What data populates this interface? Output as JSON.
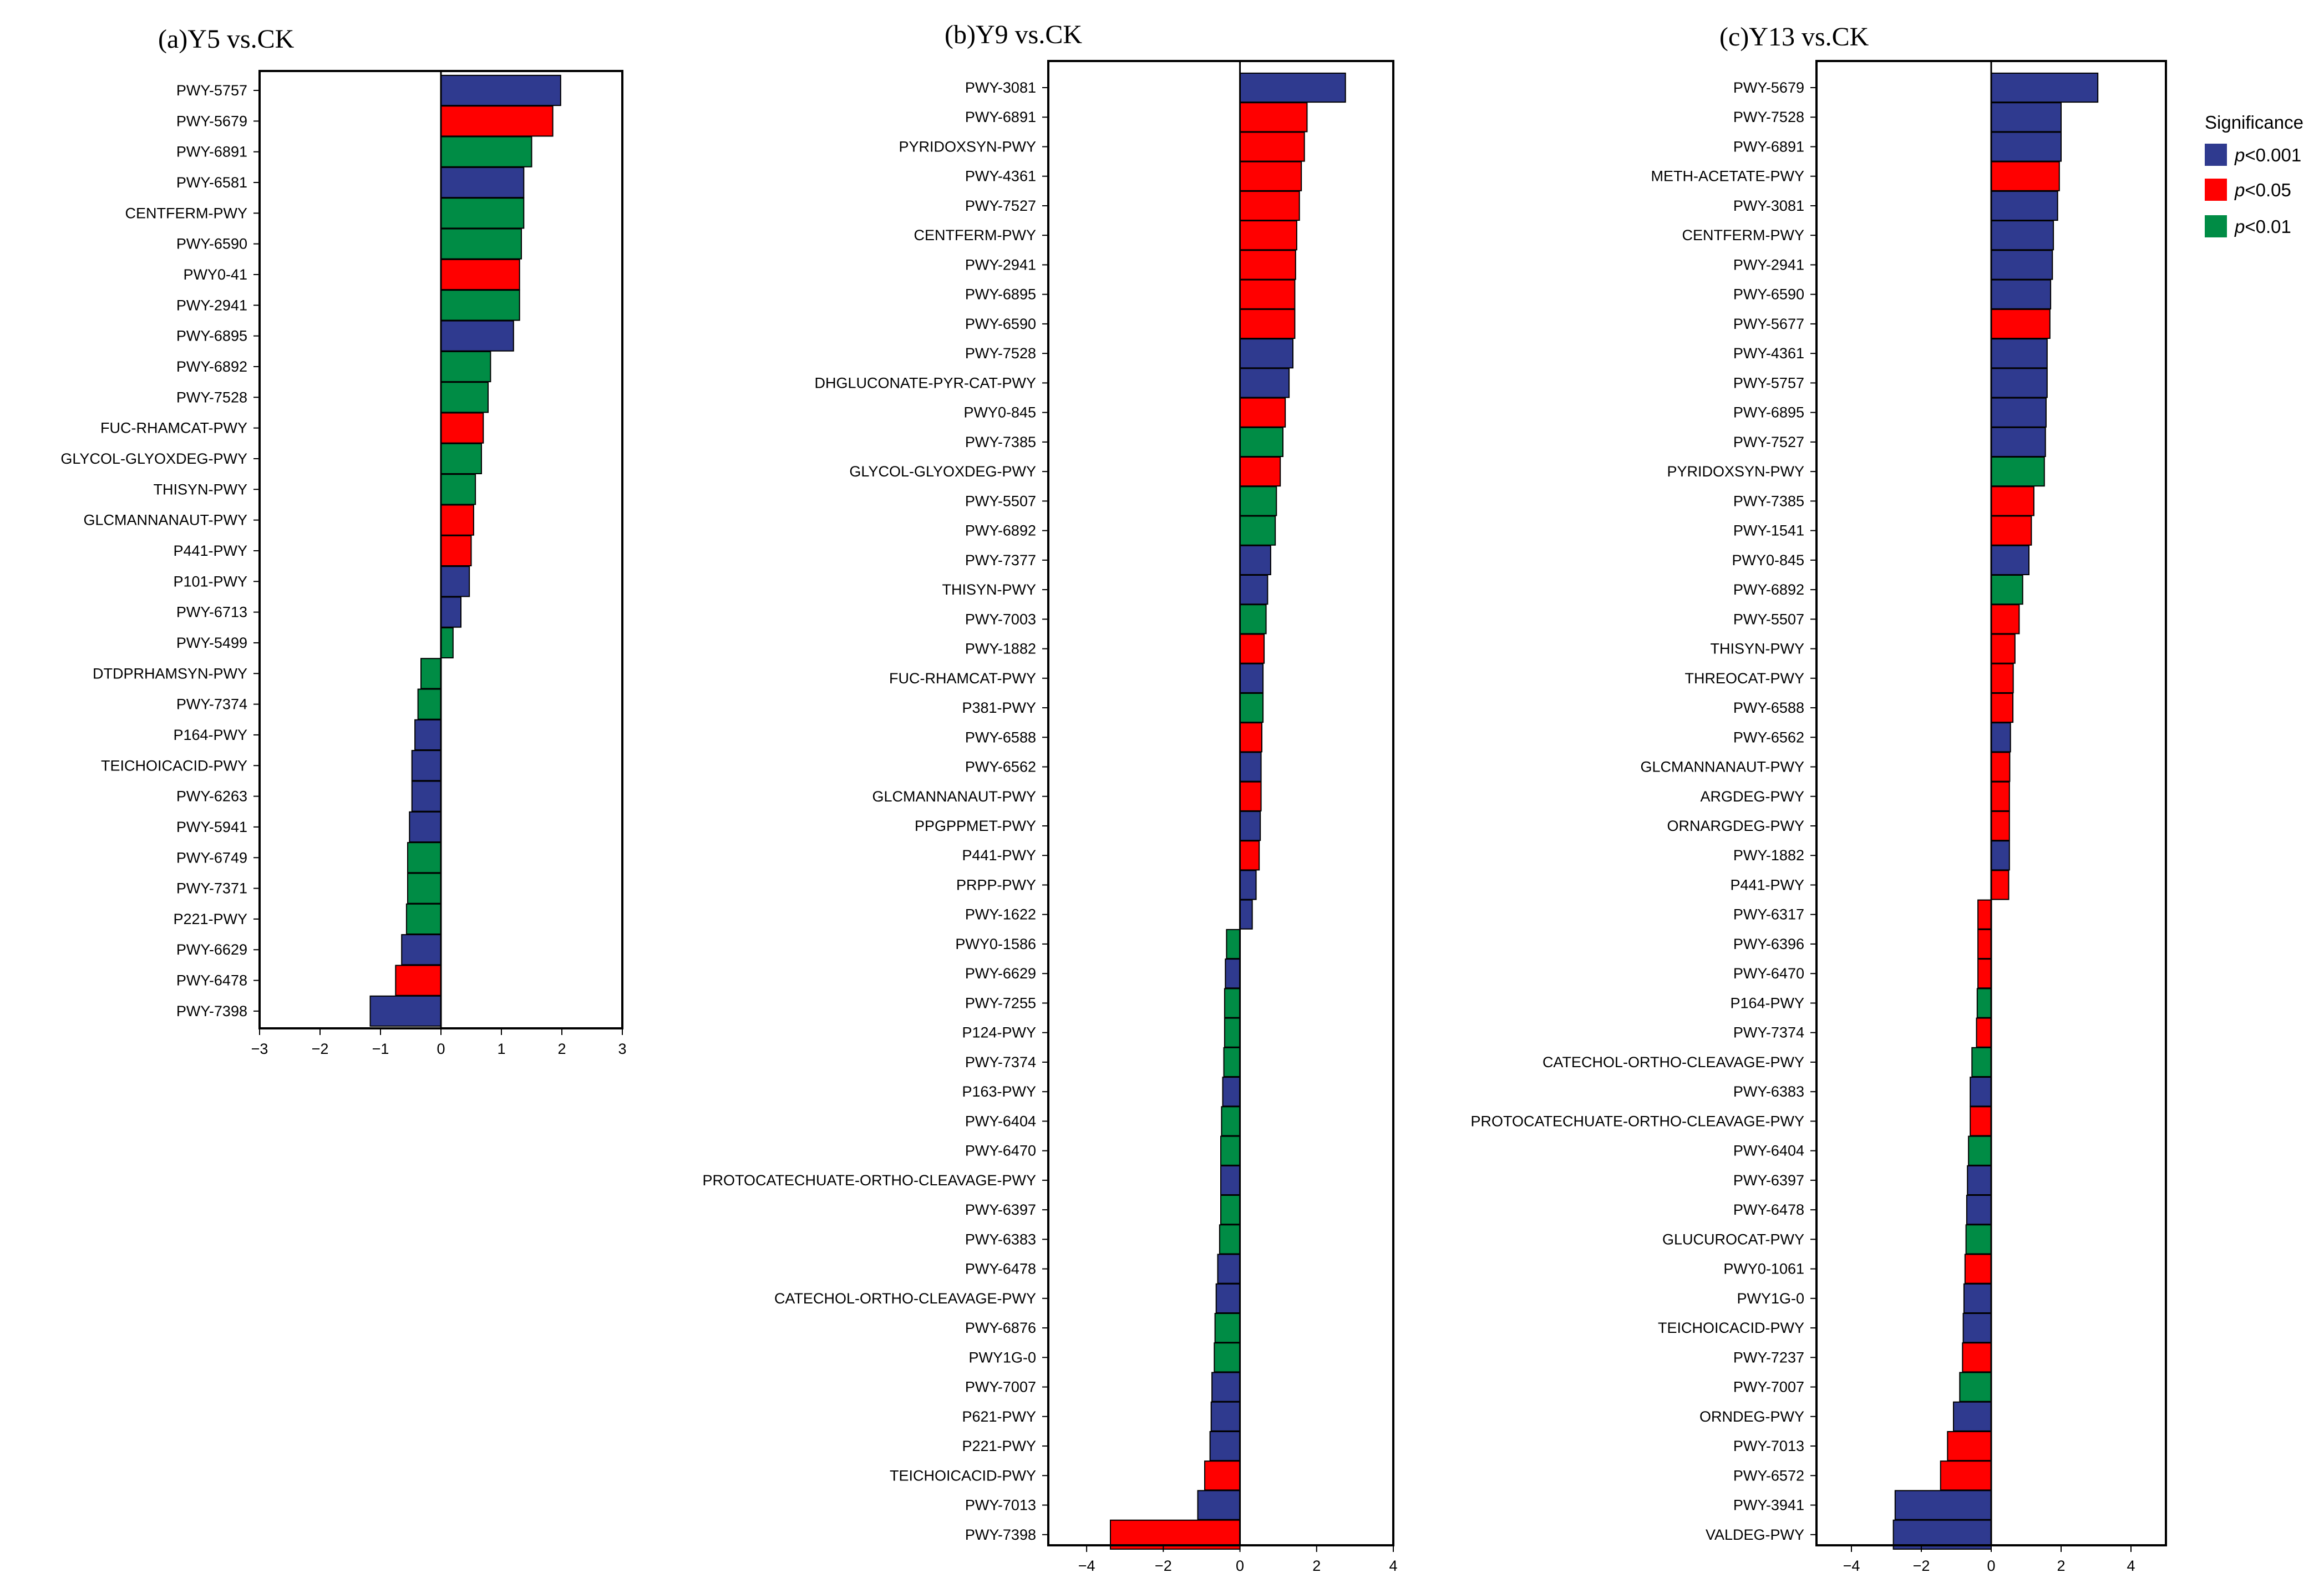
{
  "legend": {
    "title": "Significance",
    "entries": [
      {
        "key": "p<0.001",
        "p": "p",
        "rest": "<0.001",
        "color": "#2f3a8f"
      },
      {
        "key": "p<0.05",
        "p": "p",
        "rest": "<0.05",
        "color": "#ff0000"
      },
      {
        "key": "p<0.01",
        "p": "p",
        "rest": "<0.01",
        "color": "#008c45"
      }
    ]
  },
  "chart_data": [
    {
      "type": "bar",
      "orientation": "horizontal",
      "title": "(a)Y5 vs.CK",
      "xlim": [
        -3,
        3
      ],
      "xticks": [
        -3,
        -2,
        -1,
        0,
        1,
        2,
        3
      ],
      "xticklabels": [
        "−3",
        "−2",
        "−1",
        "0",
        "1",
        "2",
        "3"
      ],
      "categories": [
        "PWY-5757",
        "PWY-5679",
        "PWY-6891",
        "PWY-6581",
        "CENTFERM-PWY",
        "PWY-6590",
        "PWY0-41",
        "PWY-2941",
        "PWY-6895",
        "PWY-6892",
        "PWY-7528",
        "FUC-RHAMCAT-PWY",
        "GLYCOL-GLYOXDEG-PWY",
        "THISYN-PWY",
        "GLCMANNANAUT-PWY",
        "P441-PWY",
        "P101-PWY",
        "PWY-6713",
        "PWY-5499",
        "DTDPRHAMSYN-PWY",
        "PWY-7374",
        "P164-PWY",
        "TEICHOICACID-PWY",
        "PWY-6263",
        "PWY-5941",
        "PWY-6749",
        "PWY-7371",
        "P221-PWY",
        "PWY-6629",
        "PWY-6478",
        "PWY-7398"
      ],
      "values": [
        1.98,
        1.85,
        1.5,
        1.37,
        1.37,
        1.33,
        1.3,
        1.3,
        1.2,
        0.82,
        0.78,
        0.7,
        0.67,
        0.57,
        0.54,
        0.5,
        0.47,
        0.33,
        0.2,
        -0.33,
        -0.38,
        -0.43,
        -0.48,
        -0.48,
        -0.52,
        -0.55,
        -0.55,
        -0.57,
        -0.65,
        -0.75,
        -1.17
      ],
      "significance": [
        "p<0.001",
        "p<0.05",
        "p<0.01",
        "p<0.001",
        "p<0.01",
        "p<0.01",
        "p<0.05",
        "p<0.01",
        "p<0.001",
        "p<0.01",
        "p<0.01",
        "p<0.05",
        "p<0.01",
        "p<0.01",
        "p<0.05",
        "p<0.05",
        "p<0.001",
        "p<0.001",
        "p<0.01",
        "p<0.01",
        "p<0.01",
        "p<0.001",
        "p<0.001",
        "p<0.001",
        "p<0.001",
        "p<0.01",
        "p<0.01",
        "p<0.01",
        "p<0.001",
        "p<0.05",
        "p<0.001"
      ]
    },
    {
      "type": "bar",
      "orientation": "horizontal",
      "title": "(b)Y9 vs.CK",
      "xlim": [
        -5,
        4
      ],
      "xticks": [
        -4,
        -2,
        0,
        2,
        4
      ],
      "xticklabels": [
        "−4",
        "−2",
        "0",
        "2",
        "4"
      ],
      "categories": [
        "PWY-3081",
        "PWY-6891",
        "PYRIDOXSYN-PWY",
        "PWY-4361",
        "PWY-7527",
        "CENTFERM-PWY",
        "PWY-2941",
        "PWY-6895",
        "PWY-6590",
        "PWY-7528",
        "DHGLUCONATE-PYR-CAT-PWY",
        "PWY0-845",
        "PWY-7385",
        "GLYCOL-GLYOXDEG-PWY",
        "PWY-5507",
        "PWY-6892",
        "PWY-7377",
        "THISYN-PWY",
        "PWY-7003",
        "PWY-1882",
        "FUC-RHAMCAT-PWY",
        "P381-PWY",
        "PWY-6588",
        "PWY-6562",
        "GLCMANNANAUT-PWY",
        "PPGPPMET-PWY",
        "P441-PWY",
        "PRPP-PWY",
        "PWY-1622",
        "PWY0-1586",
        "PWY-6629",
        "PWY-7255",
        "P124-PWY",
        "PWY-7374",
        "P163-PWY",
        "PWY-6404",
        "PWY-6470",
        "PROTOCATECHUATE-ORTHO-CLEAVAGE-PWY",
        "PWY-6397",
        "PWY-6383",
        "PWY-6478",
        "CATECHOL-ORTHO-CLEAVAGE-PWY",
        "PWY-6876",
        "PWY1G-0",
        "PWY-7007",
        "P621-PWY",
        "P221-PWY",
        "TEICHOICACID-PWY",
        "PWY-7013",
        "PWY-7398"
      ],
      "values": [
        2.75,
        1.75,
        1.68,
        1.6,
        1.55,
        1.48,
        1.45,
        1.43,
        1.43,
        1.38,
        1.28,
        1.18,
        1.12,
        1.05,
        0.95,
        0.92,
        0.8,
        0.72,
        0.68,
        0.63,
        0.6,
        0.6,
        0.57,
        0.55,
        0.55,
        0.53,
        0.5,
        0.42,
        0.32,
        -0.35,
        -0.38,
        -0.4,
        -0.4,
        -0.42,
        -0.45,
        -0.48,
        -0.5,
        -0.5,
        -0.5,
        -0.53,
        -0.58,
        -0.62,
        -0.65,
        -0.67,
        -0.73,
        -0.75,
        -0.78,
        -0.92,
        -1.1,
        -3.38
      ],
      "significance": [
        "p<0.001",
        "p<0.05",
        "p<0.05",
        "p<0.05",
        "p<0.05",
        "p<0.05",
        "p<0.05",
        "p<0.05",
        "p<0.05",
        "p<0.001",
        "p<0.001",
        "p<0.05",
        "p<0.01",
        "p<0.05",
        "p<0.01",
        "p<0.01",
        "p<0.001",
        "p<0.001",
        "p<0.01",
        "p<0.05",
        "p<0.001",
        "p<0.01",
        "p<0.05",
        "p<0.001",
        "p<0.05",
        "p<0.001",
        "p<0.05",
        "p<0.001",
        "p<0.001",
        "p<0.01",
        "p<0.001",
        "p<0.01",
        "p<0.01",
        "p<0.01",
        "p<0.001",
        "p<0.01",
        "p<0.01",
        "p<0.001",
        "p<0.01",
        "p<0.01",
        "p<0.001",
        "p<0.001",
        "p<0.01",
        "p<0.01",
        "p<0.001",
        "p<0.001",
        "p<0.001",
        "p<0.05",
        "p<0.001",
        "p<0.05"
      ]
    },
    {
      "type": "bar",
      "orientation": "horizontal",
      "title": "(c)Y13 vs.CK",
      "xlim": [
        -5,
        5
      ],
      "xticks": [
        -4,
        -2,
        0,
        2,
        4
      ],
      "xticklabels": [
        "−4",
        "−2",
        "0",
        "2",
        "4"
      ],
      "categories": [
        "PWY-5679",
        "PWY-7528",
        "PWY-6891",
        "METH-ACETATE-PWY",
        "PWY-3081",
        "CENTFERM-PWY",
        "PWY-2941",
        "PWY-6590",
        "PWY-5677",
        "PWY-4361",
        "PWY-5757",
        "PWY-6895",
        "PWY-7527",
        "PYRIDOXSYN-PWY",
        "PWY-7385",
        "PWY-1541",
        "PWY0-845",
        "PWY-6892",
        "PWY-5507",
        "THISYN-PWY",
        "THREOCAT-PWY",
        "PWY-6588",
        "PWY-6562",
        "GLCMANNANAUT-PWY",
        "ARGDEG-PWY",
        "ORNARGDEG-PWY",
        "PWY-1882",
        "P441-PWY",
        "PWY-6317",
        "PWY-6396",
        "PWY-6470",
        "P164-PWY",
        "PWY-7374",
        "CATECHOL-ORTHO-CLEAVAGE-PWY",
        "PWY-6383",
        "PROTOCATECHUATE-ORTHO-CLEAVAGE-PWY",
        "PWY-6404",
        "PWY-6397",
        "PWY-6478",
        "GLUCUROCAT-PWY",
        "PWY0-1061",
        "PWY1G-0",
        "TEICHOICACID-PWY",
        "PWY-7237",
        "PWY-7007",
        "ORNDEG-PWY",
        "PWY-7013",
        "PWY-6572",
        "PWY-3941",
        "VALDEG-PWY"
      ],
      "values": [
        3.05,
        2.0,
        2.0,
        1.95,
        1.9,
        1.78,
        1.75,
        1.7,
        1.68,
        1.6,
        1.6,
        1.57,
        1.55,
        1.52,
        1.22,
        1.15,
        1.08,
        0.9,
        0.8,
        0.68,
        0.63,
        0.62,
        0.55,
        0.53,
        0.52,
        0.52,
        0.52,
        0.5,
        -0.38,
        -0.38,
        -0.38,
        -0.4,
        -0.42,
        -0.55,
        -0.6,
        -0.6,
        -0.65,
        -0.68,
        -0.7,
        -0.72,
        -0.75,
        -0.78,
        -0.8,
        -0.82,
        -0.9,
        -1.08,
        -1.25,
        -1.45,
        -2.75,
        -2.8
      ],
      "significance": [
        "p<0.001",
        "p<0.001",
        "p<0.001",
        "p<0.05",
        "p<0.001",
        "p<0.001",
        "p<0.001",
        "p<0.001",
        "p<0.05",
        "p<0.001",
        "p<0.001",
        "p<0.001",
        "p<0.001",
        "p<0.01",
        "p<0.05",
        "p<0.05",
        "p<0.001",
        "p<0.01",
        "p<0.05",
        "p<0.05",
        "p<0.05",
        "p<0.05",
        "p<0.001",
        "p<0.05",
        "p<0.05",
        "p<0.05",
        "p<0.001",
        "p<0.05",
        "p<0.05",
        "p<0.05",
        "p<0.05",
        "p<0.01",
        "p<0.05",
        "p<0.01",
        "p<0.001",
        "p<0.05",
        "p<0.01",
        "p<0.001",
        "p<0.001",
        "p<0.01",
        "p<0.05",
        "p<0.001",
        "p<0.001",
        "p<0.05",
        "p<0.01",
        "p<0.001",
        "p<0.05",
        "p<0.05",
        "p<0.001",
        "p<0.001"
      ]
    }
  ]
}
